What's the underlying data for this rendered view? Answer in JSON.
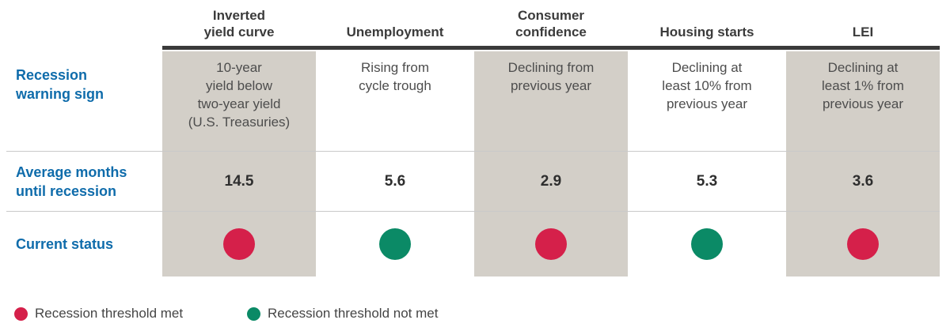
{
  "colors": {
    "accent_blue": "#0f6cab",
    "shaded_column_bg": "#d3cfc8",
    "top_bar": "#3a3a3a",
    "row_divider": "#c9c9c9",
    "status_met": "#d5204a",
    "status_not_met": "#0b8a66"
  },
  "table": {
    "row_labels": {
      "warning_sign": "Recession\nwarning sign",
      "avg_months": "Average months\nuntil recession",
      "status": "Current status"
    },
    "columns": [
      {
        "header": "Inverted\nyield curve",
        "warning_sign": "10-year\nyield below\ntwo-year yield\n(U.S. Treasuries)",
        "avg_months": "14.5",
        "status": "met",
        "status_color": "#d5204a",
        "shaded": true
      },
      {
        "header": "Unemployment",
        "warning_sign": "Rising from\ncycle trough",
        "avg_months": "5.6",
        "status": "not met",
        "status_color": "#0b8a66",
        "shaded": false
      },
      {
        "header": "Consumer\nconfidence",
        "warning_sign": "Declining from\nprevious year",
        "avg_months": "2.9",
        "status": "met",
        "status_color": "#d5204a",
        "shaded": true
      },
      {
        "header": "Housing starts",
        "warning_sign": "Declining at\nleast 10% from\nprevious year",
        "avg_months": "5.3",
        "status": "not met",
        "status_color": "#0b8a66",
        "shaded": false
      },
      {
        "header": "LEI",
        "warning_sign": "Declining at\nleast 1% from\nprevious year",
        "avg_months": "3.6",
        "status": "met",
        "status_color": "#d5204a",
        "shaded": true
      }
    ]
  },
  "legend": [
    {
      "label": "Recession threshold met",
      "color": "#d5204a"
    },
    {
      "label": "Recession threshold not met",
      "color": "#0b8a66"
    }
  ],
  "chart_data": {
    "type": "table",
    "columns": [
      "Inverted yield curve",
      "Unemployment",
      "Consumer confidence",
      "Housing starts",
      "LEI"
    ],
    "rows": [
      {
        "label": "Recession warning sign",
        "values": [
          "10-year yield below two-year yield (U.S. Treasuries)",
          "Rising from cycle trough",
          "Declining from previous year",
          "Declining at least 10% from previous year",
          "Declining at least 1% from previous year"
        ]
      },
      {
        "label": "Average months until recession",
        "values": [
          14.5,
          5.6,
          2.9,
          5.3,
          3.6
        ]
      },
      {
        "label": "Current status",
        "values": [
          "met",
          "not met",
          "met",
          "not met",
          "met"
        ]
      }
    ],
    "legend": [
      "Recession threshold met",
      "Recession threshold not met"
    ],
    "layout": "matrix table, shaded columns 1/3/5, status shown as red/green dots"
  }
}
